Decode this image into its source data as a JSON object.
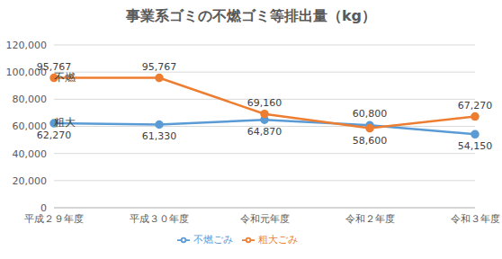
{
  "chart_data": {
    "type": "line",
    "title": "事業系ゴミの不燃ゴミ等排出量（kg）",
    "categories": [
      "平成２９年度",
      "平成３０年度",
      "令和元年度",
      "令和２年度",
      "令和３年度"
    ],
    "series": [
      {
        "name": "不燃ごみ",
        "color": "#5b9bd5",
        "marker": "circle",
        "values": [
          62270,
          61330,
          64870,
          60800,
          54150
        ],
        "value_labels": [
          "62,270",
          "61,330",
          "64,870",
          "60,800",
          "54,150"
        ]
      },
      {
        "name": "粗大ごみ",
        "color": "#ed7d31",
        "marker": "circle",
        "values": [
          95767,
          95767,
          69160,
          58600,
          67270
        ],
        "value_labels": [
          "95,767",
          "95,767",
          "69,160",
          "58,600",
          "67,270"
        ]
      }
    ],
    "ylim": [
      0,
      120000
    ],
    "yticks": [
      0,
      {
        "value": 20000,
        "label": "20,000"
      },
      {
        "value": 40000,
        "label": "40,000"
      },
      {
        "value": 60000,
        "label": "60,000"
      },
      {
        "value": 80000,
        "label": "80,000"
      },
      {
        "value": 100000,
        "label": "100,000"
      },
      {
        "value": 120000,
        "label": "120,000"
      }
    ],
    "grid": true,
    "legend": "bottom",
    "data_labels": true,
    "annotations": [
      "不燃",
      "粗大"
    ]
  }
}
